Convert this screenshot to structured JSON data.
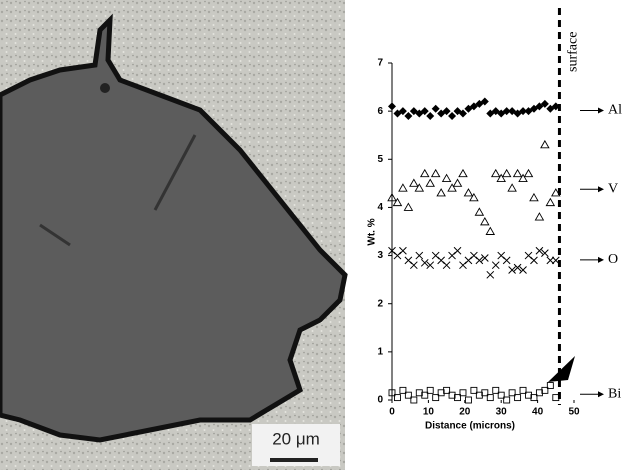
{
  "micrograph": {
    "scale_bar": "20 μm"
  },
  "chart_data": {
    "type": "scatter",
    "x_label": "Distance (microns)",
    "y_label": "Wt. %",
    "x": [
      0,
      1.5,
      3,
      4.5,
      6,
      7.5,
      9,
      10.5,
      12,
      13.5,
      15,
      16.5,
      18,
      19.5,
      21,
      22.5,
      24,
      25.5,
      27,
      28.5,
      30,
      31.5,
      33,
      34.5,
      36,
      37.5,
      39,
      40.5,
      42,
      43.5,
      45
    ],
    "series": [
      {
        "name": "Al",
        "color": "#000000",
        "marker": "diamond",
        "values": [
          6.1,
          5.95,
          6.0,
          5.9,
          6.0,
          5.95,
          6.0,
          5.9,
          6.05,
          5.95,
          6.0,
          5.9,
          6.0,
          5.95,
          6.05,
          6.1,
          6.15,
          6.2,
          5.95,
          6.0,
          5.95,
          6.0,
          6.0,
          5.95,
          6.0,
          6.0,
          6.05,
          6.1,
          6.15,
          6.05,
          6.1
        ]
      },
      {
        "name": "V",
        "color": "#000000",
        "marker": "triangle",
        "values": [
          4.2,
          4.1,
          4.4,
          4.0,
          4.5,
          4.4,
          4.7,
          4.5,
          4.7,
          4.3,
          4.6,
          4.4,
          4.5,
          4.7,
          4.3,
          4.2,
          3.9,
          3.7,
          3.5,
          4.7,
          4.6,
          4.7,
          4.4,
          4.7,
          4.6,
          4.7,
          4.2,
          3.8,
          5.3,
          4.1,
          4.3
        ]
      },
      {
        "name": "O",
        "color": "#000000",
        "marker": "cross",
        "values": [
          3.1,
          3.0,
          3.1,
          2.9,
          2.8,
          3.0,
          2.85,
          2.8,
          3.0,
          2.9,
          2.8,
          3.0,
          3.1,
          2.8,
          2.9,
          3.0,
          2.9,
          2.95,
          2.6,
          2.8,
          3.0,
          2.9,
          2.7,
          2.75,
          2.7,
          3.0,
          2.9,
          3.1,
          3.05,
          2.9,
          2.9
        ]
      },
      {
        "name": "Bi",
        "color": "#000000",
        "marker": "square",
        "values": [
          0.15,
          0.05,
          0.2,
          0.1,
          0.0,
          0.15,
          0.1,
          0.2,
          0.05,
          0.15,
          0.2,
          0.1,
          0.05,
          0.15,
          0.0,
          0.2,
          0.1,
          0.15,
          0.05,
          0.2,
          0.1,
          0.0,
          0.15,
          0.05,
          0.2,
          0.1,
          0.05,
          0.15,
          0.2,
          0.3,
          0.05
        ]
      }
    ],
    "annotations": [
      {
        "text": "surface",
        "x": 46
      }
    ],
    "xlim": [
      0,
      50
    ],
    "xticks": [
      0,
      10,
      20,
      30,
      40,
      50
    ],
    "ylim": [
      0,
      7
    ],
    "yticks": [
      0,
      1,
      2,
      3,
      4,
      5,
      6,
      7
    ]
  }
}
